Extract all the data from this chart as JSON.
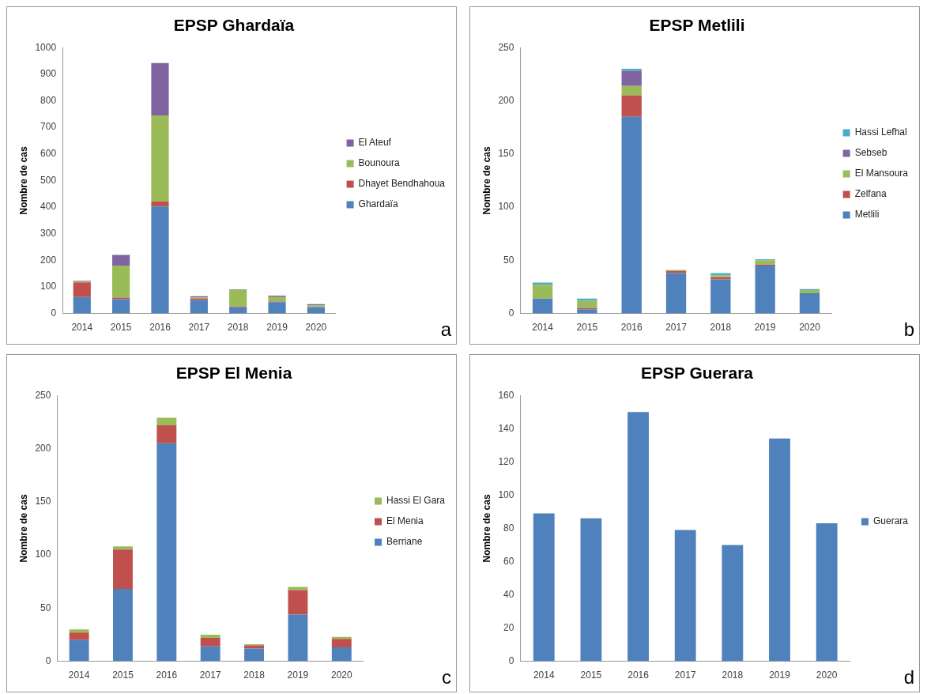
{
  "chart_data": [
    {
      "type": "bar",
      "title": "EPSP Ghardaïa",
      "ylabel": "Nombre de cas",
      "categories": [
        "2014",
        "2015",
        "2016",
        "2017",
        "2018",
        "2019",
        "2020"
      ],
      "stacked": true,
      "legend": "right",
      "grid": false,
      "ylim": [
        0,
        1000
      ],
      "yticks": [
        0,
        100,
        200,
        300,
        400,
        500,
        600,
        700,
        800,
        900,
        1000
      ],
      "annotations": [
        "a"
      ],
      "series": [
        {
          "name": "Ghardaïa",
          "color": "#4f81bd",
          "values": [
            62,
            54,
            402,
            50,
            23,
            43,
            24
          ]
        },
        {
          "name": "Dhayet Bendhahoua",
          "color": "#c0504d",
          "values": [
            55,
            6,
            20,
            6,
            3,
            2,
            null
          ]
        },
        {
          "name": "Bounoura",
          "color": "#9bbb59",
          "values": [
            3,
            120,
            323,
            4,
            63,
            17,
            7
          ]
        },
        {
          "name": "El Ateuf",
          "color": "#8064a2",
          "values": [
            3,
            40,
            197,
            5,
            2,
            5,
            4
          ]
        }
      ]
    },
    {
      "type": "bar",
      "title": "EPSP Metlili",
      "ylabel": "Nombre de cas",
      "categories": [
        "2014",
        "2015",
        "2016",
        "2017",
        "2018",
        "2019",
        "2020"
      ],
      "stacked": true,
      "legend": "right",
      "grid": false,
      "ylim": [
        0,
        250
      ],
      "yticks": [
        0,
        50,
        100,
        150,
        200,
        250
      ],
      "annotations": [
        "b"
      ],
      "series": [
        {
          "name": "Metlili",
          "color": "#4f81bd",
          "values": [
            14,
            4,
            185,
            38,
            32,
            45,
            19
          ]
        },
        {
          "name": "Zelfana",
          "color": "#c0504d",
          "values": [
            0,
            1,
            20,
            2,
            2,
            1,
            0
          ]
        },
        {
          "name": "El Mansoura",
          "color": "#9bbb59",
          "values": [
            13,
            7,
            9,
            1,
            2,
            4,
            3
          ]
        },
        {
          "name": "Sebseb",
          "color": "#8064a2",
          "values": [
            0,
            0,
            14,
            0,
            0,
            0,
            0
          ]
        },
        {
          "name": "Hassi Lefhal",
          "color": "#4bacc6",
          "values": [
            2,
            2,
            2,
            0,
            2,
            1,
            1
          ]
        }
      ]
    },
    {
      "type": "bar",
      "title": "EPSP El Menia",
      "ylabel": "Nombre de cas",
      "categories": [
        "2014",
        "2015",
        "2016",
        "2017",
        "2018",
        "2019",
        "2020"
      ],
      "stacked": true,
      "legend": "right",
      "grid": false,
      "ylim": [
        0,
        250
      ],
      "yticks": [
        0,
        50,
        100,
        150,
        200,
        250
      ],
      "annotations": [
        "c"
      ],
      "series": [
        {
          "name": "Berriane",
          "color": "#4f81bd",
          "values": [
            20,
            68,
            205,
            14,
            12,
            44,
            13
          ]
        },
        {
          "name": "El Menia",
          "color": "#c0504d",
          "values": [
            7,
            37,
            17,
            8,
            3,
            23,
            8
          ]
        },
        {
          "name": "Hassi El Gara",
          "color": "#9bbb59",
          "values": [
            3,
            3,
            7,
            3,
            1,
            3,
            2
          ]
        }
      ]
    },
    {
      "type": "bar",
      "title": "EPSP Guerara",
      "ylabel": "Nombre de cas",
      "categories": [
        "2014",
        "2015",
        "2016",
        "2017",
        "2018",
        "2019",
        "2020"
      ],
      "legend": "right",
      "grid": false,
      "ylim": [
        0,
        160
      ],
      "yticks": [
        0,
        20,
        40,
        60,
        80,
        100,
        120,
        140,
        160
      ],
      "annotations": [
        "d"
      ],
      "series": [
        {
          "name": "Guerara",
          "color": "#4f81bd",
          "values": [
            89,
            86,
            150,
            79,
            70,
            134,
            83
          ]
        }
      ]
    }
  ]
}
